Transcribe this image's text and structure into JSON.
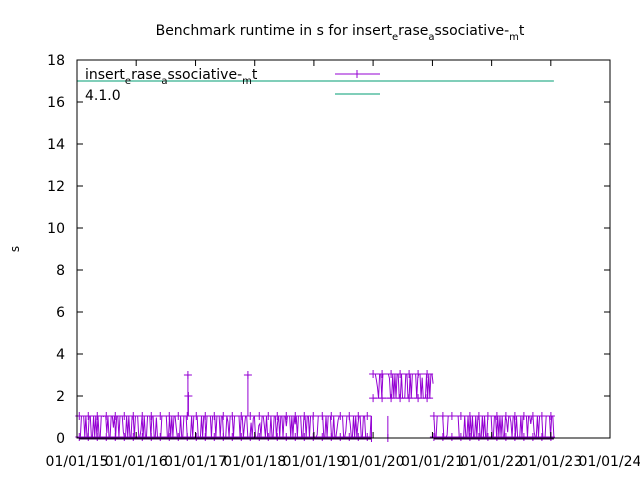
{
  "chart_data": {
    "type": "scatter",
    "title_parts": [
      "Benchmark runtime in s for insert",
      "e",
      "rase",
      "a",
      "ssociative-",
      "m",
      "t"
    ],
    "ylabel": "s",
    "xlabel": "",
    "xlim": [
      "2015-01-01",
      "2024-01-01"
    ],
    "ylim": [
      0,
      18
    ],
    "yticks": [
      0,
      2,
      4,
      6,
      8,
      10,
      12,
      14,
      16,
      18
    ],
    "xticks": [
      {
        "date": "2015-01-01",
        "label": "01/01/15"
      },
      {
        "date": "2016-01-01",
        "label": "01/01/16"
      },
      {
        "date": "2017-01-01",
        "label": "01/01/17"
      },
      {
        "date": "2018-01-01",
        "label": "01/01/18"
      },
      {
        "date": "2019-01-01",
        "label": "01/01/19"
      },
      {
        "date": "2020-01-01",
        "label": "01/01/20"
      },
      {
        "date": "2021-01-01",
        "label": "01/01/21"
      },
      {
        "date": "2022-01-01",
        "label": "01/01/22"
      },
      {
        "date": "2023-01-01",
        "label": "01/01/23"
      },
      {
        "date": "2024-01-01",
        "label": "01/01/24"
      }
    ],
    "grid": false,
    "legend_position": "top-left",
    "series": [
      {
        "name_parts": [
          "insert",
          "e",
          "rase",
          "a",
          "ssociative-",
          "m",
          "t"
        ],
        "color": "#9400d3",
        "style": "linespoints",
        "segments": [
          {
            "start": "2015-01-15",
            "end": "2019-12-20",
            "low": 0.05,
            "high": 1.05
          },
          {
            "start": "2020-01-01",
            "end": "2021-01-05",
            "low": 1.9,
            "high": 3.05
          },
          {
            "start": "2021-01-10",
            "end": "2023-01-20",
            "low": 0.05,
            "high": 1.05
          }
        ],
        "spikes": [
          {
            "date": "2016-11-15",
            "value": 3.0
          },
          {
            "date": "2016-11-18",
            "value": 2.0
          },
          {
            "date": "2017-11-20",
            "value": 3.0
          },
          {
            "date": "2019-12-22",
            "value": 0.0
          },
          {
            "date": "2020-04-01",
            "value": 0.0
          }
        ]
      },
      {
        "name": "4.1.0",
        "color": "#009e73",
        "style": "line",
        "points": [
          {
            "x": "2015-01-01",
            "y": 17.0
          },
          {
            "x": "2023-01-20",
            "y": 17.0
          }
        ]
      }
    ]
  }
}
